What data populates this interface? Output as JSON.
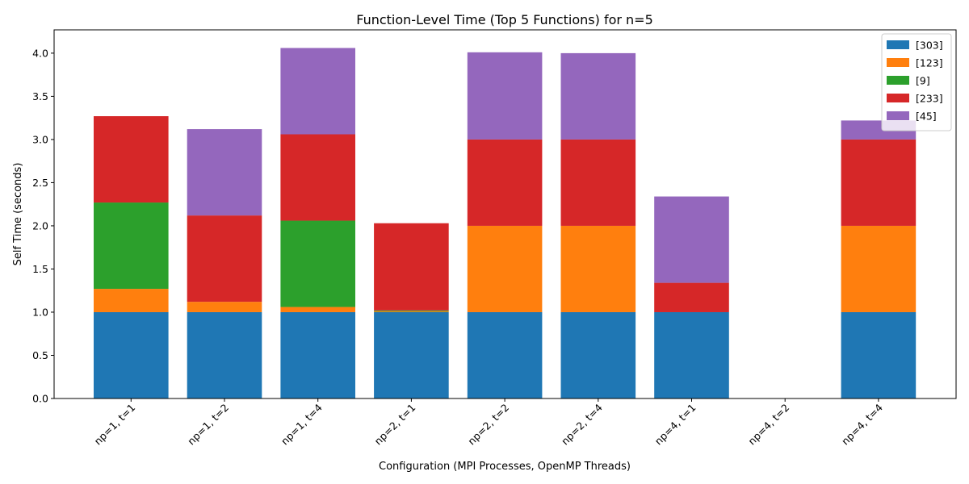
{
  "chart_data": {
    "type": "bar",
    "stacked": true,
    "title": "Function-Level Time (Top 5 Functions) for n=5",
    "xlabel": "Configuration (MPI Processes, OpenMP Threads)",
    "ylabel": "Self Time (seconds)",
    "ylim": [
      0,
      4.27
    ],
    "yticks": [
      "0.0",
      "0.5",
      "1.0",
      "1.5",
      "2.0",
      "2.5",
      "3.0",
      "3.5",
      "4.0"
    ],
    "grid": false,
    "legend_position": "top-right",
    "categories": [
      "np=1, t=1",
      "np=1, t=2",
      "np=1, t=4",
      "np=2, t=1",
      "np=2, t=2",
      "np=2, t=4",
      "np=4, t=1",
      "np=4, t=2",
      "np=4, t=4"
    ],
    "series": [
      {
        "name": "[303]",
        "color": "#1f77b4",
        "values": [
          1.0,
          1.0,
          1.0,
          1.0,
          1.0,
          1.0,
          1.0,
          0,
          1.0
        ]
      },
      {
        "name": "[123]",
        "color": "#ff7f0e",
        "values": [
          0.27,
          0.12,
          0.06,
          0.01,
          1.0,
          1.0,
          0,
          0,
          1.0
        ]
      },
      {
        "name": "[9]",
        "color": "#2ca02c",
        "values": [
          1.0,
          0,
          1.0,
          0.01,
          0,
          0,
          0,
          0,
          0
        ]
      },
      {
        "name": "[233]",
        "color": "#d62728",
        "values": [
          1.0,
          1.0,
          1.0,
          1.01,
          1.0,
          1.0,
          0.34,
          0,
          1.0
        ]
      },
      {
        "name": "[45]",
        "color": "#9467bd",
        "values": [
          0,
          1.0,
          1.0,
          0,
          1.01,
          1.0,
          1.0,
          0,
          0.22
        ]
      }
    ]
  }
}
